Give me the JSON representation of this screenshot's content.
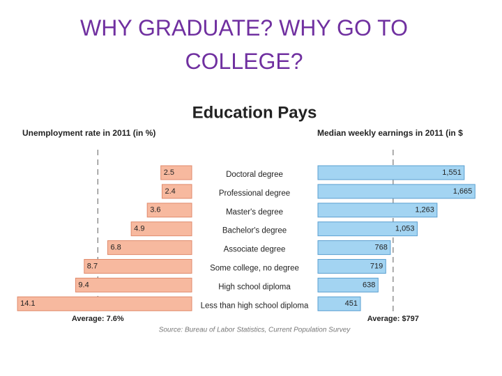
{
  "slide_title": "WHY GRADUATE? WHY GO TO COLLEGE?",
  "chart_data": {
    "type": "bar",
    "orientation": "horizontal",
    "title": "Education Pays",
    "categories": [
      "Doctoral degree",
      "Professional degree",
      "Master's degree",
      "Bachelor's degree",
      "Associate degree",
      "Some college, no degree",
      "High school diploma",
      "Less than high school diploma"
    ],
    "series": [
      {
        "name": "Unemployment rate in 2011 (in %)",
        "color": "#f7b99f",
        "values": [
          2.5,
          2.4,
          3.6,
          4.9,
          6.8,
          8.7,
          9.4,
          14.1
        ],
        "xlim": [
          0,
          14.5
        ],
        "direction": "left",
        "average": {
          "value": 7.6,
          "label": "Average: 7.6%"
        }
      },
      {
        "name": "Median weekly earnings in 2011 (in $",
        "color": "#a3d4f2",
        "values": [
          1551,
          1665,
          1263,
          1053,
          768,
          719,
          638,
          451
        ],
        "value_labels": [
          "1,551",
          "1,665",
          "1,263",
          "1,053",
          "768",
          "719",
          "638",
          "451"
        ],
        "xlim": [
          0,
          1700
        ],
        "direction": "right",
        "average": {
          "value": 797,
          "label": "Average: $797"
        }
      }
    ],
    "source": "Source: Bureau of Labor Statistics, Current Population Survey"
  }
}
